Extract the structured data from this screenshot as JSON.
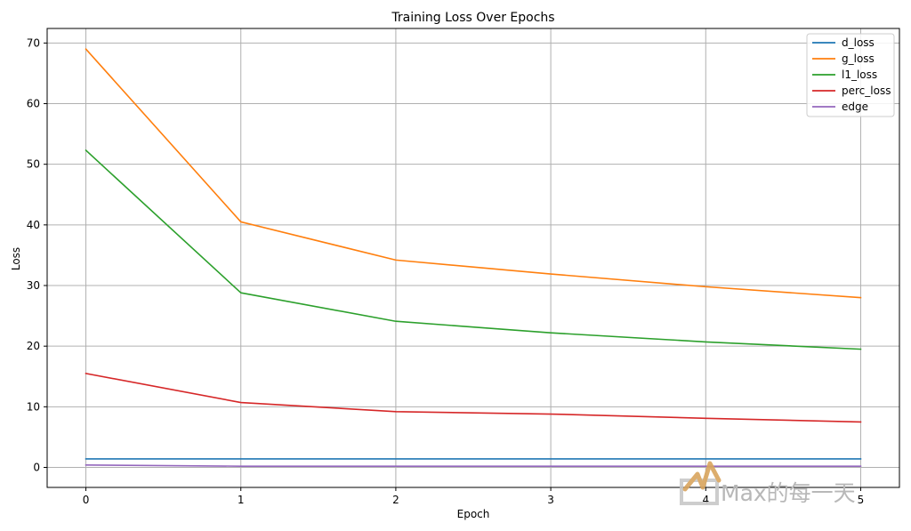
{
  "chart_data": {
    "type": "line",
    "title": "Training Loss Over Epochs",
    "xlabel": "Epoch",
    "ylabel": "Loss",
    "x": [
      0,
      1,
      2,
      3,
      4,
      5
    ],
    "xticks": [
      "0",
      "1",
      "2",
      "3",
      "4",
      "5"
    ],
    "yticks": [
      "0",
      "10",
      "20",
      "30",
      "40",
      "50",
      "60",
      "70"
    ],
    "xlim": [
      -0.25,
      5.25
    ],
    "ylim": [
      -3.3,
      72.4
    ],
    "grid": true,
    "legend_position": "top-right",
    "series": [
      {
        "name": "d_loss",
        "color": "#1f77b4",
        "values": [
          1.4,
          1.4,
          1.4,
          1.4,
          1.4,
          1.4
        ]
      },
      {
        "name": "g_loss",
        "color": "#ff7f0e",
        "values": [
          69.0,
          40.5,
          34.2,
          31.9,
          29.8,
          28.0
        ]
      },
      {
        "name": "l1_loss",
        "color": "#2ca02c",
        "values": [
          52.3,
          28.8,
          24.1,
          22.2,
          20.7,
          19.5
        ]
      },
      {
        "name": "perc_loss",
        "color": "#d62728",
        "values": [
          15.5,
          10.7,
          9.2,
          8.8,
          8.1,
          7.5
        ]
      },
      {
        "name": "edge",
        "color": "#9467bd",
        "values": [
          0.4,
          0.2,
          0.2,
          0.2,
          0.2,
          0.2
        ]
      }
    ]
  },
  "watermark": {
    "text": "Max的每一天",
    "logo_letter": "M"
  }
}
